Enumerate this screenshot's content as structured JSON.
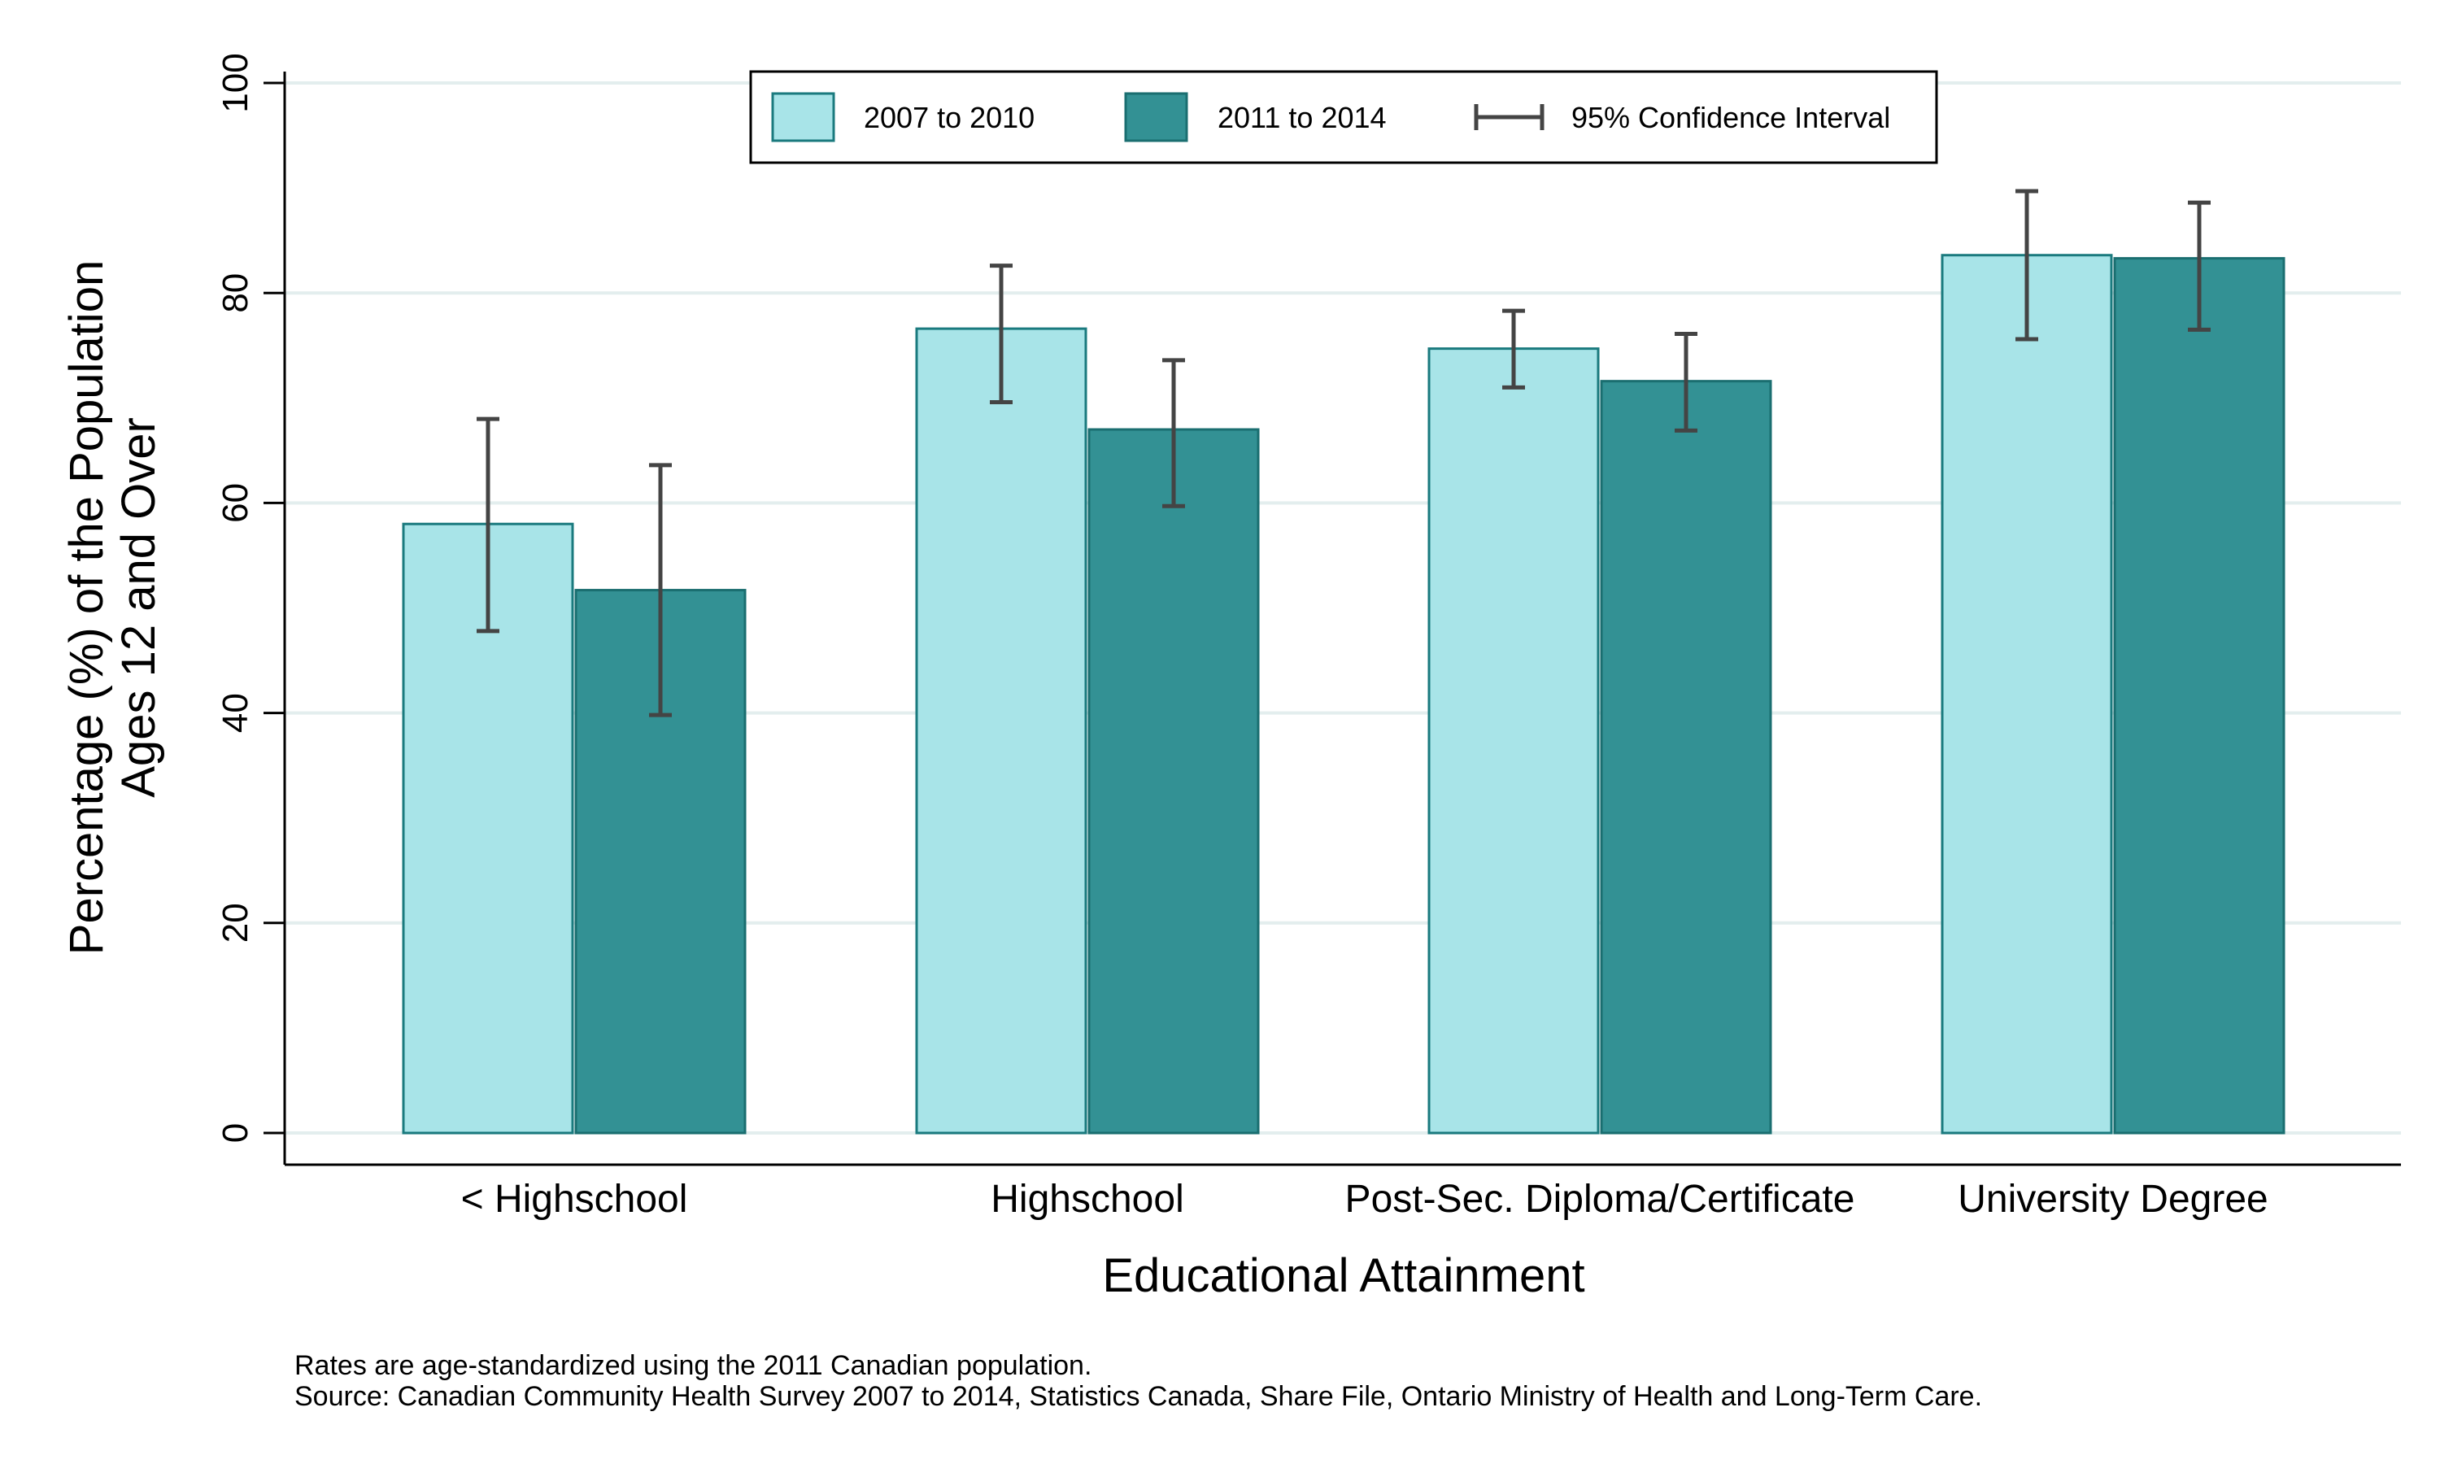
{
  "chart_data": {
    "type": "bar",
    "xlabel": "Educational Attainment",
    "ylabel_line1": "Percentage (%) of the Population",
    "ylabel_line2": "Ages 12 and Over",
    "ylim": [
      0,
      100
    ],
    "yticks": [
      "0",
      "20",
      "40",
      "60",
      "80",
      "100"
    ],
    "ytick_values": [
      0,
      20,
      40,
      60,
      80,
      100
    ],
    "grid": true,
    "legend_position": "top-center",
    "categories": [
      "< Highschool",
      "Highschool",
      "Post-Sec. Diploma/Certificate",
      "University Degree"
    ],
    "series": [
      {
        "name": "2007 to 2010",
        "color": "#a8e4e8",
        "edge_color": "#1a7a7e",
        "values": [
          58.0,
          76.6,
          74.7,
          83.6
        ],
        "ci_low": [
          47.8,
          69.6,
          71.0,
          75.6
        ],
        "ci_high": [
          68.0,
          82.6,
          78.3,
          89.7
        ]
      },
      {
        "name": "2011 to 2014",
        "color": "#339194",
        "edge_color": "#1a6e70",
        "values": [
          51.7,
          67.0,
          71.6,
          83.3
        ],
        "ci_low": [
          39.8,
          59.7,
          66.9,
          76.5
        ],
        "ci_high": [
          63.6,
          73.6,
          76.1,
          88.6
        ]
      }
    ],
    "ci_legend_label": "95% Confidence Interval",
    "ci_color": "#444444",
    "notes": [
      "Rates are age-standardized using the 2011 Canadian population.",
      "Source: Canadian Community Health Survey 2007 to 2014, Statistics Canada, Share File, Ontario Ministry of Health and Long-Term Care."
    ]
  }
}
